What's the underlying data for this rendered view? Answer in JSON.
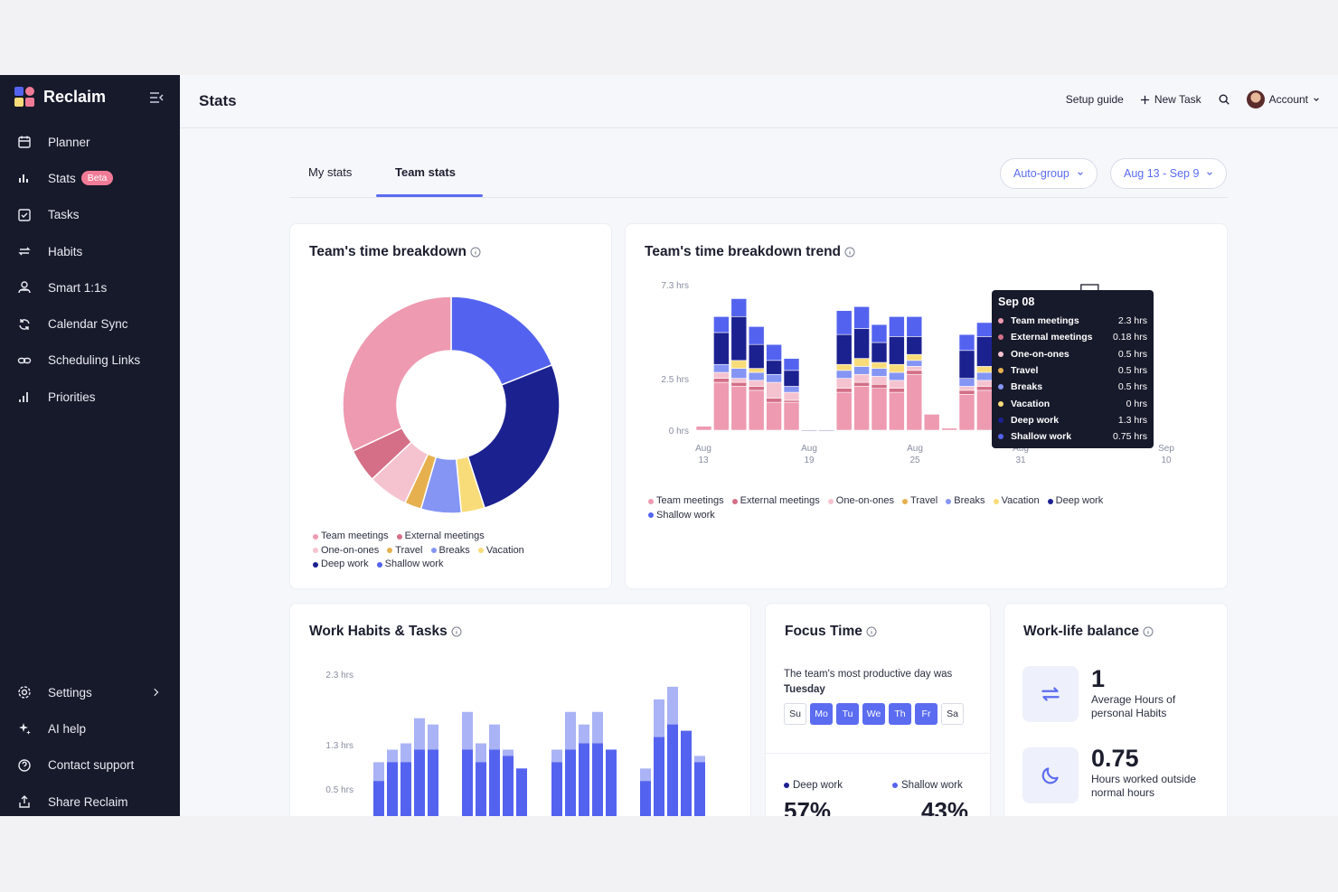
{
  "app": {
    "name": "Reclaim"
  },
  "sidebar": {
    "items": [
      {
        "label": "Planner",
        "icon": "calendar-icon"
      },
      {
        "label": "Stats",
        "icon": "bar-chart-icon",
        "badge": "Beta"
      },
      {
        "label": "Tasks",
        "icon": "checkbox-icon"
      },
      {
        "label": "Habits",
        "icon": "repeat-icon"
      },
      {
        "label": "Smart 1:1s",
        "icon": "people-icon"
      },
      {
        "label": "Calendar Sync",
        "icon": "sync-icon"
      },
      {
        "label": "Scheduling Links",
        "icon": "link-icon"
      },
      {
        "label": "Priorities",
        "icon": "priorities-icon"
      }
    ],
    "bottom": [
      {
        "label": "Settings",
        "icon": "gear-icon"
      },
      {
        "label": "AI help",
        "icon": "sparkle-icon"
      },
      {
        "label": "Contact support",
        "icon": "help-icon"
      },
      {
        "label": "Share Reclaim",
        "icon": "share-icon"
      }
    ]
  },
  "header": {
    "title": "Stats",
    "setup_guide": "Setup guide",
    "new_task": "New Task",
    "account": "Account"
  },
  "tabs": [
    {
      "label": "My stats"
    },
    {
      "label": "Team stats",
      "active": true
    }
  ],
  "filters": {
    "group": "Auto-group",
    "range": "Aug 13 - Sep 9"
  },
  "colors": {
    "team_meetings": "#ee9ab1",
    "external_meetings": "#d46f87",
    "one_on_ones": "#f5c3d0",
    "travel": "#e6b04f",
    "breaks": "#8595f4",
    "vacation": "#f8dc79",
    "deep_work": "#1c2190",
    "shallow_work": "#5463ef"
  },
  "breakdown": {
    "title": "Team's time breakdown",
    "chart_data": {
      "type": "pie",
      "donut": true,
      "slices": [
        {
          "name": "Shallow work",
          "value": 19
        },
        {
          "name": "Deep work",
          "value": 26
        },
        {
          "name": "Vacation",
          "value": 3.5
        },
        {
          "name": "Breaks",
          "value": 6
        },
        {
          "name": "Travel",
          "value": 2.5
        },
        {
          "name": "One-on-ones",
          "value": 6
        },
        {
          "name": "External meetings",
          "value": 5
        },
        {
          "name": "Team meetings",
          "value": 32
        }
      ]
    },
    "legend": [
      "Team meetings",
      "External meetings",
      "One-on-ones",
      "Travel",
      "Breaks",
      "Vacation",
      "Deep work",
      "Shallow work"
    ]
  },
  "trend": {
    "title": "Team's time breakdown trend",
    "chart_data": {
      "type": "bar",
      "stacked": true,
      "y_ticks": [
        "7.3 hrs",
        "2.5 hrs",
        "0 hrs"
      ],
      "x_ticks": [
        [
          "Aug",
          "13"
        ],
        [
          "Aug",
          "19"
        ],
        [
          "Aug",
          "25"
        ],
        [
          "Aug",
          "31"
        ],
        [
          "Sep",
          "10"
        ]
      ],
      "series_order": [
        "team_meetings",
        "external_meetings",
        "one_on_ones",
        "travel",
        "breaks",
        "vacation",
        "deep_work",
        "shallow_work"
      ],
      "stacks": [
        [
          0.2,
          0,
          0,
          0,
          0,
          0,
          0,
          0
        ],
        [
          2.4,
          0.2,
          0.3,
          0,
          0.4,
          0,
          1.6,
          0.8
        ],
        [
          2.2,
          0.2,
          0.2,
          0,
          0.5,
          0.4,
          2.2,
          0.9
        ],
        [
          2.0,
          0.2,
          0.3,
          0,
          0.4,
          0.2,
          1.2,
          0.9
        ],
        [
          1.4,
          0.2,
          0.8,
          0,
          0.4,
          0,
          0.7,
          0.8
        ],
        [
          1.4,
          0.1,
          0.4,
          0,
          0.3,
          0,
          0.8,
          0.6
        ],
        [
          0,
          0,
          0,
          0,
          0,
          0,
          0,
          0
        ],
        [
          0,
          0,
          0,
          0,
          0,
          0,
          0,
          0
        ],
        [
          1.9,
          0.2,
          0.5,
          0,
          0.4,
          0.3,
          1.5,
          1.2
        ],
        [
          2.2,
          0.2,
          0.4,
          0,
          0.4,
          0.4,
          1.5,
          1.1
        ],
        [
          2.1,
          0.2,
          0.4,
          0,
          0.4,
          0.3,
          1.0,
          0.9
        ],
        [
          1.9,
          0.2,
          0.4,
          0,
          0.4,
          0.4,
          1.4,
          1.0
        ],
        [
          2.8,
          0.2,
          0.2,
          0,
          0.3,
          0.3,
          0.9,
          1.0
        ],
        [
          0.8,
          0,
          0,
          0,
          0,
          0,
          0,
          0
        ],
        [
          0.1,
          0,
          0,
          0,
          0,
          0,
          0,
          0
        ],
        [
          1.8,
          0.2,
          0.2,
          0,
          0.4,
          0,
          1.4,
          0.8
        ],
        [
          2.0,
          0.2,
          0.3,
          0,
          0.4,
          0.3,
          1.5,
          0.7
        ],
        [
          0,
          0,
          0,
          0,
          0,
          0,
          0,
          0
        ],
        [
          0,
          0,
          0,
          0,
          0,
          0,
          0,
          0
        ],
        [
          0,
          0,
          0,
          0,
          0,
          0,
          0,
          0
        ],
        [
          0,
          0,
          0,
          0,
          0,
          0,
          0,
          0
        ],
        [
          0,
          0,
          0,
          0,
          0,
          0,
          0,
          0
        ],
        [
          2.3,
          0.18,
          0.5,
          0.5,
          0.5,
          0,
          1.3,
          0.75
        ],
        [
          0.1,
          0,
          0,
          0,
          0,
          0,
          0,
          0
        ]
      ],
      "tooltip": {
        "title": "Sep 08",
        "rows": [
          {
            "label": "Team meetings",
            "value": "2.3 hrs",
            "key": "team_meetings"
          },
          {
            "label": "External meetings",
            "value": "0.18 hrs",
            "key": "external_meetings"
          },
          {
            "label": "One-on-ones",
            "value": "0.5 hrs",
            "key": "one_on_ones"
          },
          {
            "label": "Travel",
            "value": "0.5 hrs",
            "key": "travel"
          },
          {
            "label": "Breaks",
            "value": "0.5 hrs",
            "key": "breaks"
          },
          {
            "label": "Vacation",
            "value": "0 hrs",
            "key": "vacation"
          },
          {
            "label": "Deep work",
            "value": "1.3 hrs",
            "key": "deep_work"
          },
          {
            "label": "Shallow work",
            "value": "0.75 hrs",
            "key": "shallow_work"
          }
        ]
      }
    },
    "legend": [
      "Team meetings",
      "External meetings",
      "One-on-ones",
      "Travel",
      "Breaks",
      "Vacation",
      "Deep work",
      "Shallow work"
    ]
  },
  "habits": {
    "title": "Work Habits & Tasks",
    "chart_data": {
      "type": "bar",
      "y_ticks": [
        "2.3 hrs",
        "1.3 hrs",
        "0.5 hrs"
      ],
      "groups": [
        [
          [
            0.6,
            0.9
          ],
          [
            0.9,
            1.1
          ],
          [
            0.9,
            1.2
          ],
          [
            1.1,
            1.6
          ],
          [
            1.1,
            1.5
          ]
        ],
        [
          [
            1.1,
            1.7
          ],
          [
            0.9,
            1.2
          ],
          [
            1.1,
            1.5
          ],
          [
            1.0,
            1.1
          ],
          [
            0.8,
            0.8
          ]
        ],
        [
          [
            0.9,
            1.1
          ],
          [
            1.1,
            1.7
          ],
          [
            1.2,
            1.5
          ],
          [
            1.2,
            1.7
          ],
          [
            1.1,
            1.1
          ]
        ],
        [
          [
            0.6,
            0.8
          ],
          [
            1.3,
            1.9
          ],
          [
            1.5,
            2.1
          ],
          [
            1.4,
            1.4
          ],
          [
            0.9,
            1.0
          ]
        ]
      ]
    }
  },
  "focus": {
    "title": "Focus Time",
    "text": "The team's most productive day was",
    "day": "Tuesday",
    "days": [
      {
        "l": "Su",
        "on": false
      },
      {
        "l": "Mo",
        "on": true
      },
      {
        "l": "Tu",
        "on": true
      },
      {
        "l": "We",
        "on": true
      },
      {
        "l": "Th",
        "on": true
      },
      {
        "l": "Fr",
        "on": true
      },
      {
        "l": "Sa",
        "on": false
      }
    ],
    "deep_label": "Deep work",
    "deep_pct": "57%",
    "shallow_label": "Shallow work",
    "shallow_pct": "43%"
  },
  "worklife": {
    "title": "Work-life balance",
    "stat1_value": "1",
    "stat1_label": "Average Hours of personal Habits",
    "stat2_value": "0.75",
    "stat2_label": "Hours worked outside normal hours"
  }
}
